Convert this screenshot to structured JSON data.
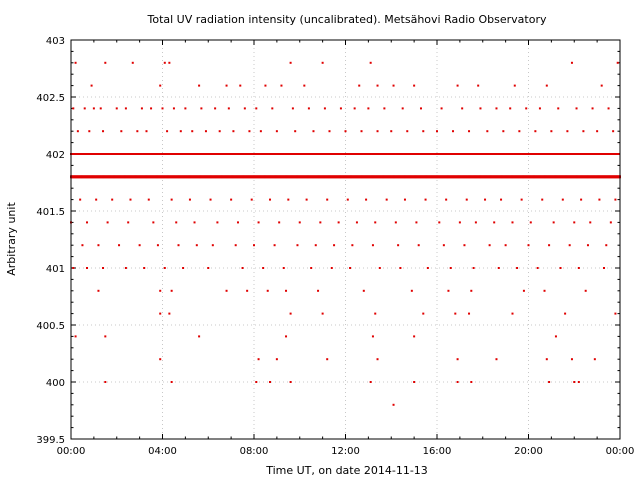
{
  "chart_data": {
    "type": "scatter",
    "title": "Total UV radiation intensity (uncalibrated). Metsähovi Radio Observatory",
    "xlabel": "Time UT, on date 2014-11-13",
    "ylabel": "Arbitrary unit",
    "xlim_hours": [
      0,
      24
    ],
    "ylim": [
      399.5,
      403
    ],
    "x_tick_labels": [
      "00:00",
      "04:00",
      "08:00",
      "12:00",
      "16:00",
      "20:00",
      "00:00"
    ],
    "y_ticks": [
      399.5,
      400,
      400.5,
      401,
      401.5,
      402,
      402.5,
      403
    ],
    "grid": true,
    "marker_color": "#e00000",
    "baseline_level": 401.8,
    "points_x_hours": [
      0.2,
      0.9,
      1.5,
      2.7,
      3.9,
      4.1,
      4.3,
      5.6,
      6.8,
      7.4,
      8.5,
      9.2,
      9.6,
      10.2,
      11.0,
      12.6,
      13.1,
      13.4,
      14.1,
      15.0,
      16.9,
      17.8,
      19.4,
      20.8,
      21.9,
      23.2,
      23.9,
      0.1,
      0.6,
      1.0,
      1.3,
      2.0,
      2.4,
      3.1,
      3.5,
      4.0,
      4.5,
      5.0,
      5.7,
      6.3,
      6.9,
      7.6,
      8.1,
      8.8,
      9.7,
      10.4,
      11.1,
      11.8,
      12.4,
      13.0,
      13.7,
      14.5,
      15.3,
      16.2,
      17.1,
      17.9,
      18.6,
      19.2,
      19.9,
      20.5,
      21.3,
      22.1,
      22.8,
      23.5,
      0.3,
      0.8,
      1.4,
      2.2,
      2.9,
      3.3,
      4.2,
      4.8,
      5.3,
      5.9,
      6.5,
      7.1,
      7.8,
      8.3,
      9.0,
      9.8,
      10.6,
      11.3,
      12.0,
      12.7,
      13.4,
      14.0,
      14.7,
      15.4,
      16.0,
      16.7,
      17.4,
      18.2,
      18.9,
      19.6,
      20.3,
      21.0,
      21.7,
      22.4,
      23.0,
      23.7,
      0.4,
      1.1,
      1.8,
      2.6,
      3.4,
      4.4,
      5.2,
      6.1,
      7.0,
      7.9,
      8.7,
      9.5,
      10.3,
      11.2,
      12.1,
      12.9,
      13.8,
      14.6,
      15.5,
      16.4,
      17.3,
      18.1,
      18.8,
      19.7,
      20.6,
      21.5,
      22.3,
      23.1,
      23.8,
      0.0,
      0.7,
      1.6,
      2.5,
      3.6,
      4.6,
      5.4,
      6.4,
      7.3,
      8.2,
      9.1,
      10.0,
      10.9,
      11.7,
      12.5,
      13.3,
      14.2,
      15.1,
      16.1,
      17.0,
      17.7,
      18.5,
      19.3,
      20.1,
      21.1,
      22.0,
      22.7,
      23.6,
      0.5,
      1.2,
      2.1,
      3.0,
      3.8,
      4.7,
      5.5,
      6.2,
      7.2,
      8.0,
      8.9,
      9.9,
      10.7,
      11.5,
      12.3,
      13.2,
      14.3,
      15.2,
      16.3,
      17.2,
      18.3,
      19.0,
      20.0,
      20.9,
      21.8,
      22.6,
      23.4,
      0.1,
      0.7,
      1.4,
      2.4,
      3.2,
      4.1,
      4.9,
      6.0,
      7.5,
      8.4,
      9.3,
      10.5,
      11.4,
      12.2,
      13.5,
      14.4,
      15.6,
      16.6,
      17.6,
      18.7,
      19.5,
      20.4,
      21.4,
      22.2,
      23.3,
      1.2,
      3.9,
      4.4,
      6.8,
      7.7,
      8.6,
      9.4,
      10.8,
      12.8,
      14.9,
      16.5,
      17.5,
      19.8,
      20.7,
      22.5,
      3.9,
      4.3,
      9.6,
      11.0,
      13.3,
      15.4,
      16.8,
      19.3,
      21.6,
      23.8,
      0.2,
      1.5,
      3.9,
      5.6,
      8.2,
      9.0,
      9.4,
      11.2,
      13.2,
      13.4,
      15.0,
      16.9,
      17.4,
      18.6,
      20.8,
      21.2,
      21.9,
      22.9,
      1.5,
      4.4,
      8.1,
      8.7,
      9.6,
      13.1,
      14.1,
      15.0,
      16.9,
      17.5,
      20.9,
      22.0,
      22.2
    ],
    "points_y": [
      402.8,
      402.6,
      402.8,
      402.8,
      402.6,
      402.8,
      402.8,
      402.6,
      402.6,
      402.6,
      402.6,
      402.6,
      402.8,
      402.6,
      402.8,
      402.6,
      402.8,
      402.6,
      402.6,
      402.6,
      402.6,
      402.6,
      402.6,
      402.6,
      402.8,
      402.6,
      402.8,
      402.4,
      402.4,
      402.4,
      402.4,
      402.4,
      402.4,
      402.4,
      402.4,
      402.4,
      402.4,
      402.4,
      402.4,
      402.4,
      402.4,
      402.4,
      402.4,
      402.4,
      402.4,
      402.4,
      402.4,
      402.4,
      402.4,
      402.4,
      402.4,
      402.4,
      402.4,
      402.4,
      402.4,
      402.4,
      402.4,
      402.4,
      402.4,
      402.4,
      402.4,
      402.4,
      402.4,
      402.4,
      402.2,
      402.2,
      402.2,
      402.2,
      402.2,
      402.2,
      402.2,
      402.2,
      402.2,
      402.2,
      402.2,
      402.2,
      402.2,
      402.2,
      402.2,
      402.2,
      402.2,
      402.2,
      402.2,
      402.2,
      402.2,
      402.2,
      402.2,
      402.2,
      402.2,
      402.2,
      402.2,
      402.2,
      402.2,
      402.2,
      402.2,
      402.2,
      402.2,
      402.2,
      402.2,
      402.2,
      401.6,
      401.6,
      401.6,
      401.6,
      401.6,
      401.6,
      401.6,
      401.6,
      401.6,
      401.6,
      401.6,
      401.6,
      401.6,
      401.6,
      401.6,
      401.6,
      401.6,
      401.6,
      401.6,
      401.6,
      401.6,
      401.6,
      401.6,
      401.6,
      401.6,
      401.6,
      401.6,
      401.6,
      401.6,
      401.4,
      401.4,
      401.4,
      401.4,
      401.4,
      401.4,
      401.4,
      401.4,
      401.4,
      401.4,
      401.4,
      401.4,
      401.4,
      401.4,
      401.4,
      401.4,
      401.4,
      401.4,
      401.4,
      401.4,
      401.4,
      401.4,
      401.4,
      401.4,
      401.4,
      401.4,
      401.4,
      401.4,
      401.2,
      401.2,
      401.2,
      401.2,
      401.2,
      401.2,
      401.2,
      401.2,
      401.2,
      401.2,
      401.2,
      401.2,
      401.2,
      401.2,
      401.2,
      401.2,
      401.2,
      401.2,
      401.2,
      401.2,
      401.2,
      401.2,
      401.2,
      401.2,
      401.2,
      401.2,
      401.2,
      401.0,
      401.0,
      401.0,
      401.0,
      401.0,
      401.0,
      401.0,
      401.0,
      401.0,
      401.0,
      401.0,
      401.0,
      401.0,
      401.0,
      401.0,
      401.0,
      401.0,
      401.0,
      401.0,
      401.0,
      401.0,
      401.0,
      401.0,
      401.0,
      401.0,
      400.8,
      400.8,
      400.8,
      400.8,
      400.8,
      400.8,
      400.8,
      400.8,
      400.8,
      400.8,
      400.8,
      400.8,
      400.8,
      400.8,
      400.8,
      400.6,
      400.6,
      400.6,
      400.6,
      400.6,
      400.6,
      400.6,
      400.6,
      400.6,
      400.6,
      400.4,
      400.4,
      400.2,
      400.4,
      400.2,
      400.2,
      400.4,
      400.2,
      400.4,
      400.2,
      400.4,
      400.2,
      400.6,
      400.2,
      400.2,
      400.4,
      400.2,
      400.2,
      400.0,
      400.0,
      400.0,
      400.0,
      400.0,
      400.0,
      399.8,
      400.0,
      400.0,
      400.0,
      400.0,
      400.0,
      400.0
    ]
  }
}
